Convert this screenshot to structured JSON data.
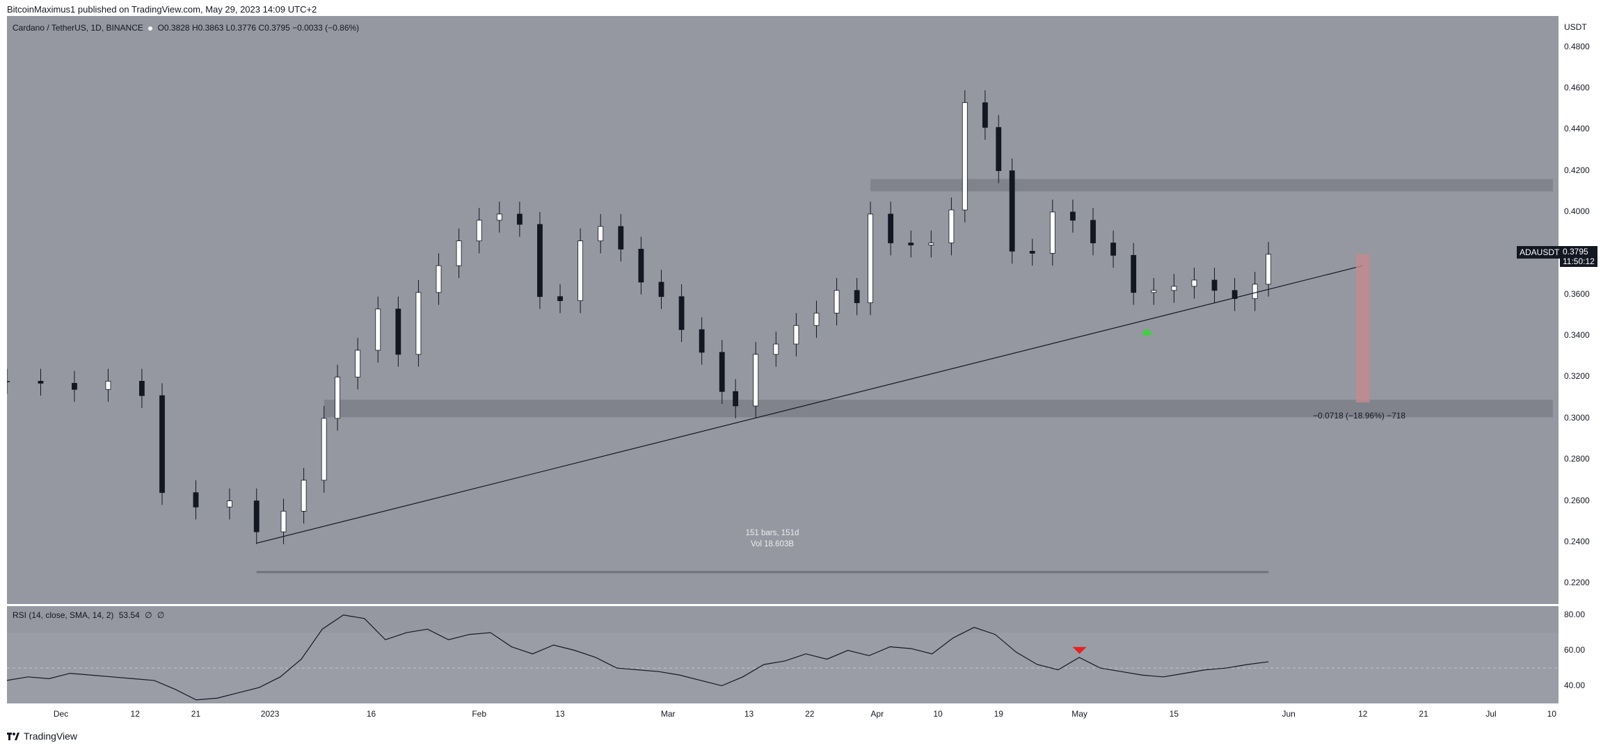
{
  "header": {
    "author": "BitcoinMaximus1",
    "published_text": "published on TradingView.com, May 29, 2023 14:09 UTC+2"
  },
  "symbol": {
    "name": "Cardano / TetherUS, 1D, BINANCE",
    "ticker": "ADAUSDT",
    "open_label": "O",
    "open": "0.3828",
    "high_label": "H",
    "high": "0.3863",
    "low_label": "L",
    "low": "0.3776",
    "close_label": "C",
    "close": "0.3795",
    "change": "−0.0033 (−0.86%)",
    "price_tag": "0.3795",
    "countdown": "11:50:12"
  },
  "price_axis": {
    "currency": "USDT",
    "ticks": [
      "0.4800",
      "0.4600",
      "0.4400",
      "0.4200",
      "0.4000",
      "0.3800",
      "0.3600",
      "0.3400",
      "0.3200",
      "0.3000",
      "0.2800",
      "0.2600",
      "0.2400",
      "0.2200"
    ]
  },
  "time_axis": {
    "ticks": [
      "Dec",
      "12",
      "21",
      "2023",
      "16",
      "Feb",
      "13",
      "Mar",
      "13",
      "22",
      "Apr",
      "10",
      "19",
      "May",
      "15",
      "Jun",
      "12",
      "21",
      "Jul",
      "10"
    ]
  },
  "rsi": {
    "label": "RSI (14, close, SMA, 14, 2)",
    "value": "53.54",
    "extra1": "∅",
    "extra2": "∅",
    "ticks": [
      "80.00",
      "60.00",
      "40.00"
    ]
  },
  "measure": {
    "bars_text": "151 bars, 151d",
    "vol_text": "Vol 18.603B",
    "range_text": "−0.0718 (−18.96%) −718"
  },
  "footer": {
    "brand": "TradingView"
  },
  "colors": {
    "background": "#9598a1",
    "bull_candle": "#ffffff",
    "bear_candle": "#131722",
    "zone": "#7c7f88",
    "drop_box": "#c48a8d",
    "up_arrow": "#3fd13f",
    "down_arrow": "#e52222"
  },
  "chart_data": [
    {
      "type": "candlestick",
      "title": "Cardano / TetherUS, 1D, BINANCE",
      "xlabel": "",
      "ylabel": "USDT",
      "ylim": [
        0.21,
        0.495
      ],
      "x_range": [
        "2022-11-23",
        "2023-07-11"
      ],
      "candles_close_approx": [
        [
          "2022-11-23",
          0.318
        ],
        [
          "2022-11-28",
          0.317
        ],
        [
          "2022-12-03",
          0.314
        ],
        [
          "2022-12-08",
          0.318
        ],
        [
          "2022-12-13",
          0.311
        ],
        [
          "2022-12-16",
          0.264
        ],
        [
          "2022-12-21",
          0.257
        ],
        [
          "2022-12-26",
          0.26
        ],
        [
          "2022-12-30",
          0.245
        ],
        [
          "2023-01-03",
          0.255
        ],
        [
          "2023-01-06",
          0.27
        ],
        [
          "2023-01-09",
          0.3
        ],
        [
          "2023-01-11",
          0.32
        ],
        [
          "2023-01-14",
          0.333
        ],
        [
          "2023-01-17",
          0.353
        ],
        [
          "2023-01-20",
          0.331
        ],
        [
          "2023-01-23",
          0.361
        ],
        [
          "2023-01-26",
          0.374
        ],
        [
          "2023-01-29",
          0.386
        ],
        [
          "2023-02-01",
          0.396
        ],
        [
          "2023-02-04",
          0.399
        ],
        [
          "2023-02-07",
          0.394
        ],
        [
          "2023-02-10",
          0.359
        ],
        [
          "2023-02-13",
          0.357
        ],
        [
          "2023-02-16",
          0.386
        ],
        [
          "2023-02-19",
          0.393
        ],
        [
          "2023-02-22",
          0.382
        ],
        [
          "2023-02-25",
          0.366
        ],
        [
          "2023-02-28",
          0.359
        ],
        [
          "2023-03-03",
          0.343
        ],
        [
          "2023-03-06",
          0.332
        ],
        [
          "2023-03-09",
          0.313
        ],
        [
          "2023-03-11",
          0.306
        ],
        [
          "2023-03-14",
          0.331
        ],
        [
          "2023-03-17",
          0.336
        ],
        [
          "2023-03-20",
          0.345
        ],
        [
          "2023-03-23",
          0.351
        ],
        [
          "2023-03-26",
          0.362
        ],
        [
          "2023-03-29",
          0.356
        ],
        [
          "2023-03-31",
          0.399
        ],
        [
          "2023-04-03",
          0.385
        ],
        [
          "2023-04-06",
          0.384
        ],
        [
          "2023-04-09",
          0.385
        ],
        [
          "2023-04-12",
          0.401
        ],
        [
          "2023-04-14",
          0.453
        ],
        [
          "2023-04-17",
          0.441
        ],
        [
          "2023-04-19",
          0.42
        ],
        [
          "2023-04-21",
          0.381
        ],
        [
          "2023-04-24",
          0.38
        ],
        [
          "2023-04-27",
          0.4
        ],
        [
          "2023-04-30",
          0.396
        ],
        [
          "2023-05-03",
          0.385
        ],
        [
          "2023-05-06",
          0.379
        ],
        [
          "2023-05-09",
          0.361
        ],
        [
          "2023-05-12",
          0.362
        ],
        [
          "2023-05-15",
          0.364
        ],
        [
          "2023-05-18",
          0.367
        ],
        [
          "2023-05-21",
          0.362
        ],
        [
          "2023-05-24",
          0.358
        ],
        [
          "2023-05-27",
          0.365
        ],
        [
          "2023-05-29",
          0.3795
        ]
      ],
      "horizontal_zones": [
        [
          0.41,
          0.416
        ],
        [
          0.3005,
          0.309
        ]
      ],
      "trendline": [
        [
          "2022-12-30",
          0.2395
        ],
        [
          "2023-06-12",
          0.374
        ]
      ],
      "drop_box": {
        "from": 0.3795,
        "to": 0.3077,
        "change": -0.0718
      },
      "annotations": [
        "151 bars, 151d",
        "Vol 18.603B",
        "−0.0718 (−18.96%) −718"
      ]
    },
    {
      "type": "line",
      "title": "RSI (14, close, SMA, 14, 2)",
      "ylim": [
        30,
        85
      ],
      "series": [
        {
          "values": [
            43,
            45,
            44,
            47,
            46,
            45,
            44,
            43,
            38,
            32,
            33,
            36,
            39,
            45,
            55,
            72,
            80,
            78,
            66,
            70,
            72,
            66,
            69,
            70,
            62,
            58,
            63,
            60,
            56,
            50,
            49,
            48,
            46,
            43,
            40,
            45,
            52,
            54,
            58,
            55,
            60,
            57,
            62,
            61,
            58,
            67,
            73,
            69,
            59,
            52,
            49,
            56,
            50,
            48,
            46,
            45,
            47,
            49,
            50,
            52,
            53.54
          ]
        }
      ],
      "markers": [
        {
          "date": "2023-05-01",
          "kind": "bearish-divergence-arrow",
          "value": 58
        }
      ]
    }
  ]
}
